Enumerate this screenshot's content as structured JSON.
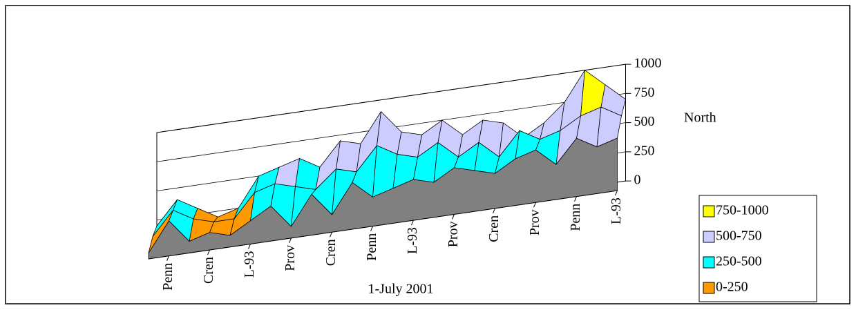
{
  "chart_data": {
    "type": "surface",
    "x_label": "1-July 2001",
    "z_label": "North",
    "categories": [
      null,
      "Penn",
      null,
      "Cren",
      null,
      "L-93",
      null,
      "Prov",
      null,
      "Cren",
      null,
      "Penn",
      null,
      "L-93",
      null,
      "Prov",
      null,
      "Cren",
      null,
      "Prov",
      null,
      "Penn",
      null,
      "L-93"
    ],
    "series": [
      {
        "values": [
          50,
          300,
          100,
          150,
          100,
          200,
          300,
          100,
          350,
          150,
          400,
          250,
          300,
          350,
          300,
          400,
          350,
          300,
          400,
          450,
          300,
          500,
          400,
          450
        ]
      },
      {
        "values": [
          150,
          350,
          250,
          200,
          200,
          400,
          450,
          400,
          350,
          500,
          450,
          650,
          550,
          500,
          600,
          450,
          550,
          400,
          600,
          500,
          550,
          650,
          700,
          600
        ]
      },
      {
        "values": [
          200,
          400,
          300,
          200,
          250,
          500,
          550,
          600,
          500,
          700,
          650,
          900,
          700,
          650,
          750,
          600,
          700,
          650,
          500,
          600,
          750,
          1000,
          850,
          700
        ]
      }
    ],
    "ylim": [
      0,
      1000
    ],
    "yticks": [
      0,
      250,
      500,
      750,
      1000
    ],
    "bands": [
      {
        "label": "0-250",
        "color": "#ff9900"
      },
      {
        "label": "250-500",
        "color": "#00ffff"
      },
      {
        "label": "500-750",
        "color": "#ccccff"
      },
      {
        "label": "750-1000",
        "color": "#ffff00"
      }
    ],
    "floor_color": "#808080"
  }
}
